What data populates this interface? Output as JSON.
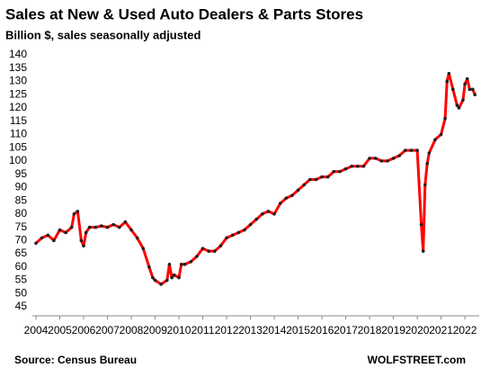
{
  "chart_data": {
    "type": "line",
    "title": "Sales at New & Used Auto Dealers & Parts Stores",
    "subtitle": "Billion $, sales seasonally adjusted",
    "source": "Source: Census Bureau",
    "credit": "WOLFSTREET.com",
    "xlim": [
      2004,
      2022.6
    ],
    "xticks": [
      2004,
      2005,
      2006,
      2007,
      2008,
      2009,
      2010,
      2011,
      2012,
      2013,
      2014,
      2015,
      2016,
      2017,
      2018,
      2019,
      2020,
      2021,
      2022
    ],
    "ylim": [
      45,
      140
    ],
    "yticks": [
      45,
      50,
      55,
      60,
      65,
      70,
      75,
      80,
      85,
      90,
      95,
      100,
      105,
      110,
      115,
      120,
      125,
      130,
      135,
      140
    ],
    "grid": false,
    "series": [
      {
        "color": "#ff0000",
        "marker_color": "#222222",
        "x": [
          2004.0,
          2004.25,
          2004.5,
          2004.75,
          2005.0,
          2005.25,
          2005.5,
          2005.6,
          2005.75,
          2005.9,
          2006.0,
          2006.1,
          2006.25,
          2006.5,
          2006.75,
          2007.0,
          2007.25,
          2007.5,
          2007.75,
          2008.0,
          2008.25,
          2008.5,
          2008.75,
          2008.9,
          2009.0,
          2009.25,
          2009.5,
          2009.6,
          2009.7,
          2009.8,
          2010.0,
          2010.1,
          2010.25,
          2010.5,
          2010.75,
          2011.0,
          2011.25,
          2011.5,
          2011.75,
          2012.0,
          2012.25,
          2012.5,
          2012.75,
          2013.0,
          2013.25,
          2013.5,
          2013.75,
          2014.0,
          2014.25,
          2014.5,
          2014.75,
          2015.0,
          2015.25,
          2015.5,
          2015.75,
          2016.0,
          2016.25,
          2016.5,
          2016.75,
          2017.0,
          2017.25,
          2017.5,
          2017.75,
          2018.0,
          2018.25,
          2018.5,
          2018.75,
          2019.0,
          2019.25,
          2019.5,
          2019.75,
          2020.0,
          2020.17,
          2020.25,
          2020.33,
          2020.42,
          2020.5,
          2020.75,
          2021.0,
          2021.17,
          2021.25,
          2021.33,
          2021.5,
          2021.67,
          2021.75,
          2021.92,
          2022.0,
          2022.1,
          2022.2,
          2022.33,
          2022.42
        ],
        "values": [
          69,
          71,
          72,
          70,
          74,
          73,
          75,
          80,
          81,
          70,
          68,
          73,
          75,
          75,
          75.5,
          75,
          76,
          75,
          77,
          74,
          71,
          67,
          60,
          56,
          55,
          53.5,
          55,
          61,
          56,
          57,
          56,
          61,
          61,
          62,
          64,
          67,
          66,
          66,
          68,
          71,
          72,
          73,
          74,
          76,
          78,
          80,
          81,
          80,
          84,
          86,
          87,
          89,
          91,
          93,
          93,
          94,
          94,
          96,
          96,
          97,
          98,
          98,
          98,
          101,
          101,
          100,
          100,
          101,
          102,
          104,
          104,
          104,
          76,
          66,
          91,
          99,
          103,
          108,
          110,
          116,
          130,
          133,
          127,
          121,
          120,
          123,
          129,
          131,
          127,
          127,
          125
        ]
      }
    ]
  }
}
